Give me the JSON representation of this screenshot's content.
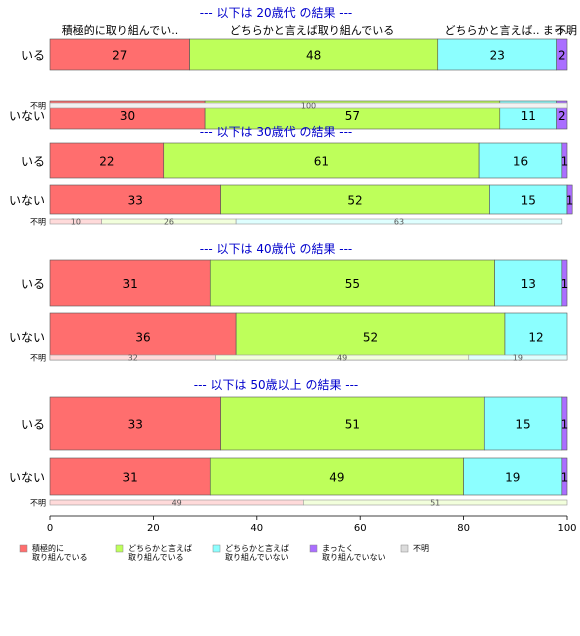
{
  "chart_data": {
    "type": "bar",
    "orientation": "horizontal",
    "stacked": "percent",
    "xlim": [
      0,
      100
    ],
    "x_ticks": [
      0,
      20,
      40,
      60,
      80,
      100
    ],
    "column_headers": [
      "積極的に取り組んでい..",
      "どちらかと言えば取り組んでいる",
      "どちらかと言えば..",
      "まっ..",
      "不明"
    ],
    "legend_position": "bottom",
    "legend": [
      {
        "name": "積極的に\n取り組んでいる",
        "color": "#FF6E6E"
      },
      {
        "name": "どちらかと言えば\n取り組んでいる",
        "color": "#BEFF5A"
      },
      {
        "name": "どちらかと言えば\n取り組んでいない",
        "color": "#8CFFFF"
      },
      {
        "name": "まったく\n取り組んでいない",
        "color": "#AA6EFF"
      },
      {
        "name": "不明",
        "color": "#DCDCDC"
      }
    ],
    "panels": [
      {
        "title": "--- 以下は 20歳代 の結果 ---",
        "rows": [
          {
            "label": "いる",
            "values": [
              27,
              48,
              23,
              2,
              0
            ]
          },
          {
            "label": "いない",
            "values": [
              30,
              57,
              11,
              2,
              0
            ]
          },
          {
            "label": "不明",
            "values": [
              0,
              0,
              0,
              0,
              100
            ]
          }
        ]
      },
      {
        "title": "--- 以下は 30歳代 の結果 ---",
        "rows": [
          {
            "label": "いる",
            "values": [
              22,
              61,
              16,
              1,
              0
            ]
          },
          {
            "label": "いない",
            "values": [
              33,
              52,
              15,
              1,
              0
            ]
          },
          {
            "label": "不明",
            "values": [
              10,
              26,
              63,
              0,
              0
            ]
          }
        ]
      },
      {
        "title": "--- 以下は 40歳代 の結果 ---",
        "rows": [
          {
            "label": "いる",
            "values": [
              31,
              55,
              13,
              1,
              0
            ]
          },
          {
            "label": "いない",
            "values": [
              36,
              52,
              12,
              0,
              0
            ]
          },
          {
            "label": "不明",
            "values": [
              32,
              49,
              19,
              0,
              0
            ]
          }
        ]
      },
      {
        "title": "--- 以下は 50歳以上 の結果 ---",
        "rows": [
          {
            "label": "いる",
            "values": [
              33,
              51,
              15,
              1,
              0
            ]
          },
          {
            "label": "いない",
            "values": [
              31,
              49,
              19,
              1,
              0
            ]
          },
          {
            "label": "不明",
            "values": [
              49,
              51,
              0,
              0,
              0
            ]
          }
        ]
      }
    ]
  }
}
